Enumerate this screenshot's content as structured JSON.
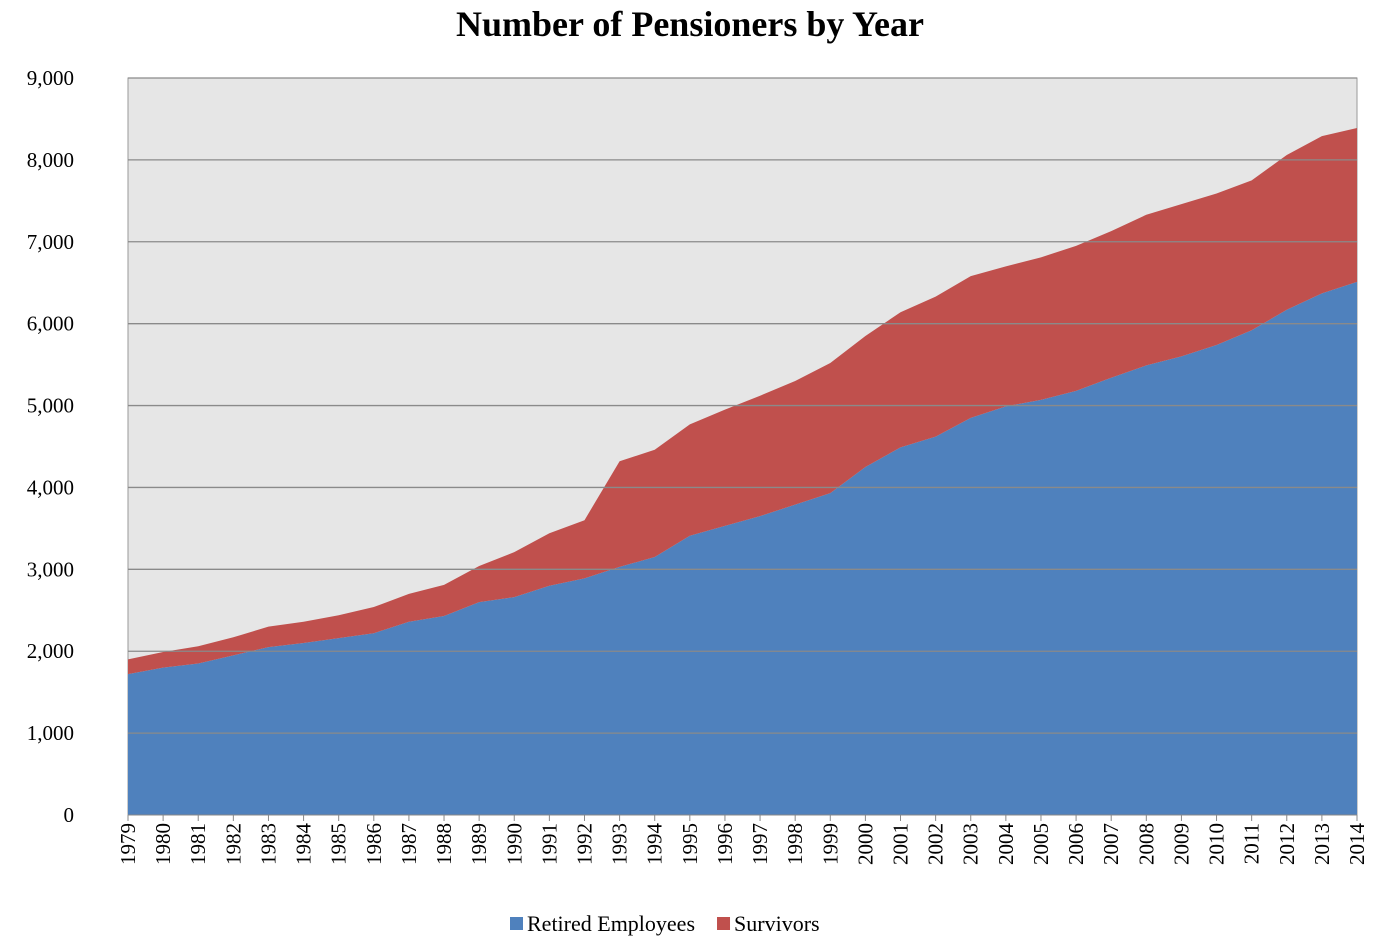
{
  "chart_data": {
    "type": "stacked_area",
    "title": "Number of Pensioners by Year",
    "categories": [
      "1979",
      "1980",
      "1981",
      "1982",
      "1983",
      "1984",
      "1985",
      "1986",
      "1987",
      "1988",
      "1989",
      "1990",
      "1991",
      "1992",
      "1993",
      "1994",
      "1995",
      "1996",
      "1997",
      "1998",
      "1999",
      "2000",
      "2001",
      "2002",
      "2003",
      "2004",
      "2005",
      "2006",
      "2007",
      "2008",
      "2009",
      "2010",
      "2011",
      "2012",
      "2013",
      "2014"
    ],
    "series": [
      {
        "name": "Retired Employees",
        "color": "#4f81bd",
        "values": [
          1720,
          1800,
          1850,
          1950,
          2050,
          2100,
          2160,
          2220,
          2360,
          2430,
          2600,
          2660,
          2800,
          2890,
          3030,
          3150,
          3410,
          3530,
          3650,
          3790,
          3930,
          4250,
          4490,
          4620,
          4850,
          4990,
          5070,
          5180,
          5340,
          5490,
          5600,
          5740,
          5920,
          6170,
          6370,
          6510
        ]
      },
      {
        "name": "Survivors",
        "color": "#c0504d",
        "values": [
          180,
          190,
          210,
          220,
          250,
          260,
          280,
          320,
          340,
          380,
          440,
          550,
          640,
          710,
          1290,
          1310,
          1360,
          1420,
          1470,
          1510,
          1590,
          1600,
          1650,
          1710,
          1730,
          1710,
          1740,
          1770,
          1790,
          1840,
          1860,
          1850,
          1830,
          1890,
          1920,
          1880
        ]
      }
    ],
    "ylim": [
      0,
      9000
    ],
    "yticks": [
      0,
      {
        "value": 1000,
        "label": "1,000"
      },
      {
        "value": 2000,
        "label": "2,000"
      },
      {
        "value": 3000,
        "label": "3,000"
      },
      {
        "value": 4000,
        "label": "4,000"
      },
      {
        "value": 5000,
        "label": "5,000"
      },
      {
        "value": 6000,
        "label": "6,000"
      },
      {
        "value": 7000,
        "label": "7,000"
      },
      {
        "value": 8000,
        "label": "8,000"
      },
      {
        "value": 9000,
        "label": "9,000"
      }
    ],
    "grid": true,
    "legend": "bottom"
  }
}
